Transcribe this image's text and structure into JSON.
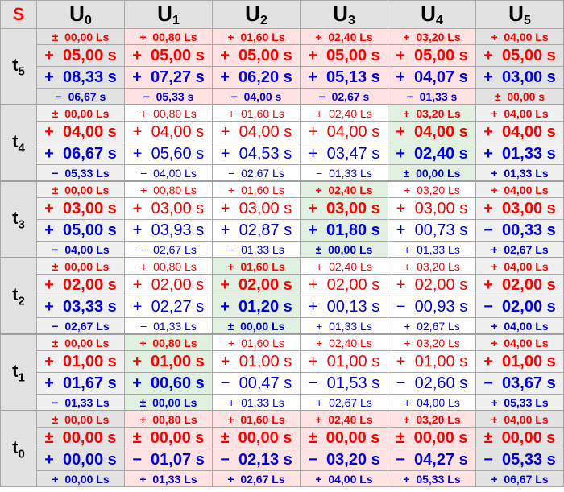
{
  "corner": "S",
  "columns": [
    {
      "base": "U",
      "sub": "0"
    },
    {
      "base": "U",
      "sub": "1"
    },
    {
      "base": "U",
      "sub": "2"
    },
    {
      "base": "U",
      "sub": "3"
    },
    {
      "base": "U",
      "sub": "4"
    },
    {
      "base": "U",
      "sub": "5"
    }
  ],
  "colors": {
    "positive_line": "#ff0000",
    "negative_line": "#0000e0",
    "highlight_diagonal": "#e2f0e2",
    "edge_row": "#ffe2e2",
    "edge_col": "#e2e2e2"
  },
  "rows": [
    {
      "base": "t",
      "sub": "5",
      "lines": [
        [
          "±  00,00 Ls",
          "+  00,80 Ls",
          "+  01,60 Ls",
          "+  02,40 Ls",
          "+  03,20 Ls",
          "+  04,00 Ls"
        ],
        [
          "+  05,00 s",
          "+  05,00 s",
          "+  05,00 s",
          "+  05,00 s",
          "+  05,00 s",
          "+  05,00 s"
        ],
        [
          "+  08,33 s",
          "+  07,27 s",
          "+  06,20 s",
          "+  05,13 s",
          "+  04,07 s",
          "+  03,00 s"
        ],
        [
          "−  06,67 s",
          "−  05,33 s",
          "−  04,00 s",
          "−  02,67 s",
          "−  01,33 s",
          "±  00,00 s"
        ]
      ]
    },
    {
      "base": "t",
      "sub": "4",
      "lines": [
        [
          "±  00,00 Ls",
          "+  00,80 Ls",
          "+  01,60 Ls",
          "+  02,40 Ls",
          "+  03,20 Ls",
          "+  04,00 Ls"
        ],
        [
          "+  04,00 s",
          "+  04,00 s",
          "+  04,00 s",
          "+  04,00 s",
          "+  04,00 s",
          "+  04,00 s"
        ],
        [
          "+  06,67 s",
          "+  05,60 s",
          "+  04,53 s",
          "+  03,47 s",
          "+  02,40 s",
          "+  01,33 s"
        ],
        [
          "−  05,33 Ls",
          "−  04,00 Ls",
          "−  02,67 Ls",
          "−  01,33 Ls",
          "±  00,00 Ls",
          "+  01,33 Ls"
        ]
      ]
    },
    {
      "base": "t",
      "sub": "3",
      "lines": [
        [
          "±  00,00 Ls",
          "+  00,80 Ls",
          "+  01,60 Ls",
          "+  02,40 Ls",
          "+  03,20 Ls",
          "+  04,00 Ls"
        ],
        [
          "+  03,00 s",
          "+  03,00 s",
          "+  03,00 s",
          "+  03,00 s",
          "+  03,00 s",
          "+  03,00 s"
        ],
        [
          "+  05,00 s",
          "+  03,93 s",
          "+  02,87 s",
          "+  01,80 s",
          "+  00,73 s",
          "−  00,33 s"
        ],
        [
          "−  04,00 Ls",
          "−  02,67 Ls",
          "−  01,33 Ls",
          "±  00,00 Ls",
          "+  01,33 Ls",
          "+  02,67 Ls"
        ]
      ]
    },
    {
      "base": "t",
      "sub": "2",
      "lines": [
        [
          "±  00,00 Ls",
          "+  00,80 Ls",
          "+  01,60 Ls",
          "+  02,40 Ls",
          "+  03,20 Ls",
          "+  04,00 Ls"
        ],
        [
          "+  02,00 s",
          "+  02,00 s",
          "+  02,00 s",
          "+  02,00 s",
          "+  02,00 s",
          "+  02,00 s"
        ],
        [
          "+  03,33 s",
          "+  02,27 s",
          "+  01,20 s",
          "+  00,13 s",
          "−  00,93 s",
          "−  02,00 s"
        ],
        [
          "−  02,67 Ls",
          "−  01,33 Ls",
          "±  00,00 Ls",
          "+  01,33 Ls",
          "+  02,67 Ls",
          "+  04,00 Ls"
        ]
      ]
    },
    {
      "base": "t",
      "sub": "1",
      "lines": [
        [
          "±  00,00 Ls",
          "+  00,80 Ls",
          "+  01,60 Ls",
          "+  02,40 Ls",
          "+  03,20 Ls",
          "+  04,00 Ls"
        ],
        [
          "+  01,00 s",
          "+  01,00 s",
          "+  01,00 s",
          "+  01,00 s",
          "+  01,00 s",
          "+  01,00 s"
        ],
        [
          "+  01,67 s",
          "+  00,60 s",
          "−  00,47 s",
          "−  01,53 s",
          "−  02,60 s",
          "−  03,67 s"
        ],
        [
          "−  01,33 Ls",
          "±  00,00 Ls",
          "+  01,33 Ls",
          "+  02,67 Ls",
          "+  04,00 Ls",
          "+  05,33 Ls"
        ]
      ]
    },
    {
      "base": "t",
      "sub": "0",
      "lines": [
        [
          "±  00,00 Ls",
          "+  00,80 Ls",
          "+  01,60 Ls",
          "+  02,40 Ls",
          "+  03,20 Ls",
          "+  04,00 Ls"
        ],
        [
          "±  00,00 s",
          "±  00,00 s",
          "±  00,00 s",
          "±  00,00 s",
          "±  00,00 s",
          "±  00,00 s"
        ],
        [
          "+  00,00 s",
          "−  01,07 s",
          "−  02,13 s",
          "−  03,20 s",
          "−  04,27 s",
          "−  05,33 s"
        ],
        [
          "+  00,00 Ls",
          "+  01,33 Ls",
          "+  02,67 Ls",
          "+  04,00 Ls",
          "+  05,33 Ls",
          "+  06,67 Ls"
        ]
      ]
    }
  ]
}
